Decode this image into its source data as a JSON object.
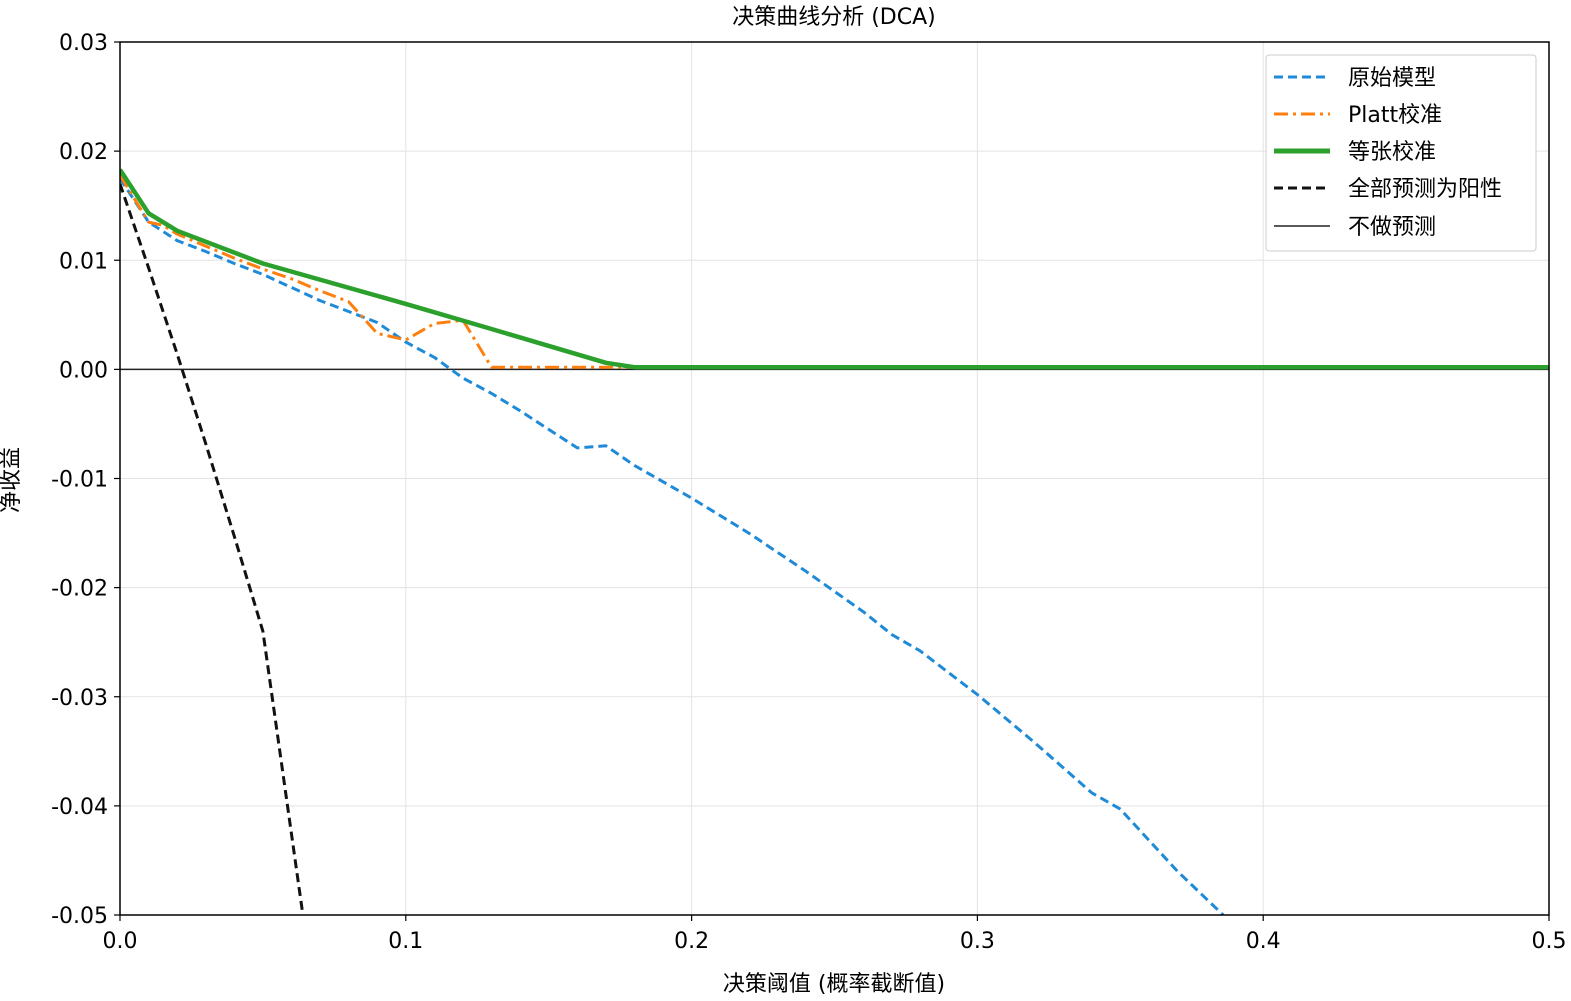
{
  "chart_data": {
    "type": "line",
    "title": "决策曲线分析 (DCA)",
    "xlabel": "决策阈值 (概率截断值)",
    "ylabel": "净收益",
    "xlim": [
      0.0,
      0.5
    ],
    "ylim": [
      -0.05,
      0.03
    ],
    "xticks": [
      "0.0",
      "0.1",
      "0.2",
      "0.3",
      "0.4",
      "0.5"
    ],
    "yticks": [
      "0.03",
      "0.02",
      "0.01",
      "0.00",
      "-0.01",
      "-0.02",
      "-0.03",
      "-0.04",
      "-0.05"
    ],
    "grid": true,
    "legend_position": "top-right",
    "series": [
      {
        "name": "原始模型",
        "color": "#1f8ad8",
        "style": "dashed",
        "x": [
          0.0,
          0.01,
          0.02,
          0.03,
          0.04,
          0.05,
          0.06,
          0.07,
          0.08,
          0.09,
          0.1,
          0.11,
          0.12,
          0.13,
          0.14,
          0.15,
          0.16,
          0.17,
          0.18,
          0.2,
          0.22,
          0.24,
          0.26,
          0.27,
          0.28,
          0.3,
          0.32,
          0.34,
          0.35,
          0.37,
          0.386
        ],
        "y": [
          0.0175,
          0.0135,
          0.0118,
          0.0108,
          0.0097,
          0.0087,
          0.0075,
          0.0063,
          0.0053,
          0.0043,
          0.0025,
          0.0011,
          -0.0008,
          -0.0022,
          -0.0038,
          -0.0055,
          -0.0072,
          -0.007,
          -0.0088,
          -0.0118,
          -0.015,
          -0.0185,
          -0.0222,
          -0.0243,
          -0.0258,
          -0.0298,
          -0.0342,
          -0.0388,
          -0.0403,
          -0.046,
          -0.05
        ]
      },
      {
        "name": "Platt校准",
        "color": "#ff7f0e",
        "style": "dashdot",
        "x": [
          0.0,
          0.01,
          0.015,
          0.02,
          0.03,
          0.04,
          0.05,
          0.06,
          0.07,
          0.08,
          0.09,
          0.1,
          0.11,
          0.12,
          0.13,
          0.14,
          0.2,
          0.3,
          0.4,
          0.5
        ],
        "y": [
          0.0178,
          0.0135,
          0.0132,
          0.0124,
          0.0113,
          0.0102,
          0.0092,
          0.0083,
          0.0072,
          0.0062,
          0.0033,
          0.0027,
          0.0042,
          0.0045,
          0.0002,
          0.0002,
          0.0002,
          0.0002,
          0.0002,
          0.0002
        ]
      },
      {
        "name": "等张校准",
        "color": "#2ca02c",
        "style": "solid-thick",
        "x": [
          0.0,
          0.01,
          0.02,
          0.05,
          0.1,
          0.13,
          0.17,
          0.18,
          0.2,
          0.3,
          0.4,
          0.5
        ],
        "y": [
          0.0183,
          0.0143,
          0.0127,
          0.0097,
          0.006,
          0.0037,
          0.0006,
          0.0002,
          0.0002,
          0.0002,
          0.0002,
          0.0002
        ]
      },
      {
        "name": "全部预测为阳性",
        "color": "#111111",
        "style": "dashed",
        "x": [
          0.0,
          0.01,
          0.02,
          0.03,
          0.04,
          0.05,
          0.064
        ],
        "y": [
          0.017,
          0.0093,
          0.0014,
          -0.0068,
          -0.0153,
          -0.024,
          -0.05
        ]
      },
      {
        "name": "不做预测",
        "color": "#222222",
        "style": "solid-thin",
        "x": [
          0.0,
          0.5
        ],
        "y": [
          0.0,
          0.0
        ]
      }
    ]
  }
}
